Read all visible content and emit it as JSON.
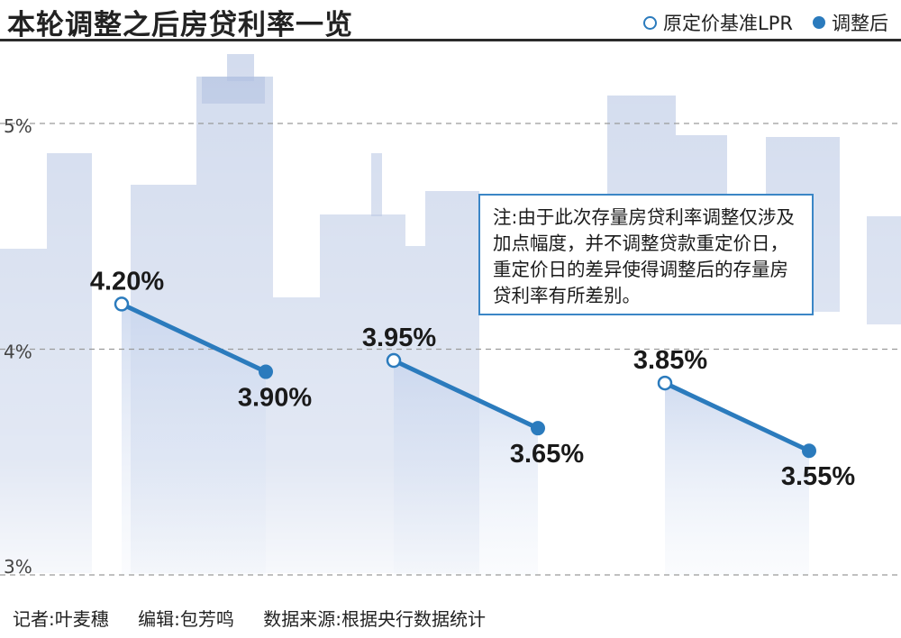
{
  "header": {
    "title": "本轮调整之后房贷利率一览",
    "legend_original": "原定价基准LPR",
    "legend_adjusted": "调整后"
  },
  "note": "注:由于此次存量房贷利率调整仅涉及加点幅度，并不调整贷款重定价日，重定价日的差异使得调整后的存量房贷利率有所差别。",
  "footer": {
    "reporter": "记者:叶麦穗",
    "editor": "编辑:包芳鸣",
    "source": "数据来源:根据央行数据统计"
  },
  "colors": {
    "line": "#2b7bbd",
    "grid": "#9a9a9a",
    "building": "#aebfe0"
  },
  "chart_data": {
    "type": "line",
    "title": "本轮调整之后房贷利率一览",
    "ylim": [
      3,
      5.5
    ],
    "yticks": [
      3,
      4,
      5
    ],
    "ytick_labels": [
      "3%",
      "4%",
      "5%"
    ],
    "grid": true,
    "legend_position": "top-right",
    "series": [
      {
        "name": "原定价基准LPR",
        "values": [
          4.2,
          3.95,
          3.85
        ],
        "labels": [
          "4.20%",
          "3.95%",
          "3.85%"
        ]
      },
      {
        "name": "调整后",
        "values": [
          3.9,
          3.65,
          3.55
        ],
        "labels": [
          "3.90%",
          "3.65%",
          "3.55%"
        ]
      }
    ]
  }
}
